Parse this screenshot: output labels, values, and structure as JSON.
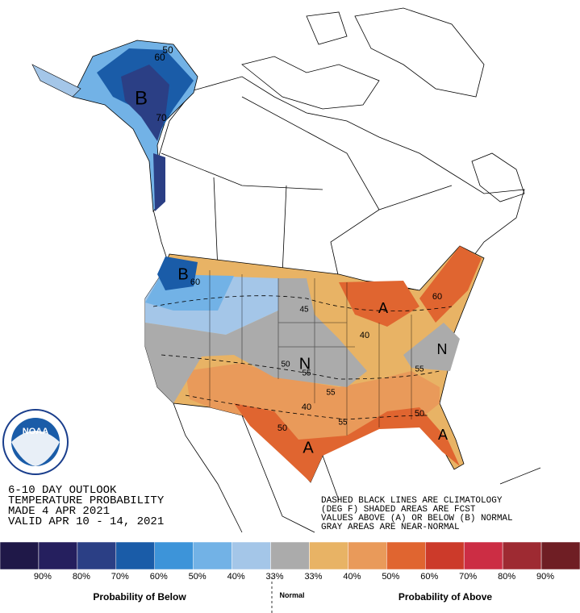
{
  "header": {
    "lines": [
      "6-10 DAY OUTLOOK",
      "TEMPERATURE PROBABILITY",
      "MADE  4 APR 2021",
      "VALID  APR 10 - 14, 2021"
    ]
  },
  "notes": [
    "DASHED BLACK LINES ARE CLIMATOLOGY",
    "(DEG F) SHADED AREAS ARE FCST",
    "VALUES ABOVE (A) OR BELOW (B) NORMAL",
    "GRAY AREAS ARE NEAR-NORMAL"
  ],
  "logo": "NOAA",
  "map_labels": [
    "B",
    "B",
    "N",
    "N",
    "A",
    "A",
    "A",
    "50",
    "60",
    "70",
    "60",
    "45",
    "50",
    "55",
    "55",
    "40",
    "50",
    "55",
    "60",
    "40",
    "50",
    "55"
  ],
  "legend": {
    "colors": [
      "#1f1848",
      "#251f5e",
      "#2b3f85",
      "#1a5ca8",
      "#3d94d9",
      "#72b2e6",
      "#a4c6e8",
      "#ababab",
      "#e8b365",
      "#e99a5a",
      "#e06530",
      "#cc3a2a",
      "#cc2d44",
      "#9e2a32",
      "#6f1e24"
    ],
    "labels": [
      "90%",
      "80%",
      "70%",
      "60%",
      "50%",
      "40%",
      "33%",
      "33%",
      "40%",
      "50%",
      "60%",
      "70%",
      "80%",
      "90%"
    ],
    "below_title": "Probability of Below",
    "normal_title": "Normal",
    "above_title": "Probability of Above"
  }
}
